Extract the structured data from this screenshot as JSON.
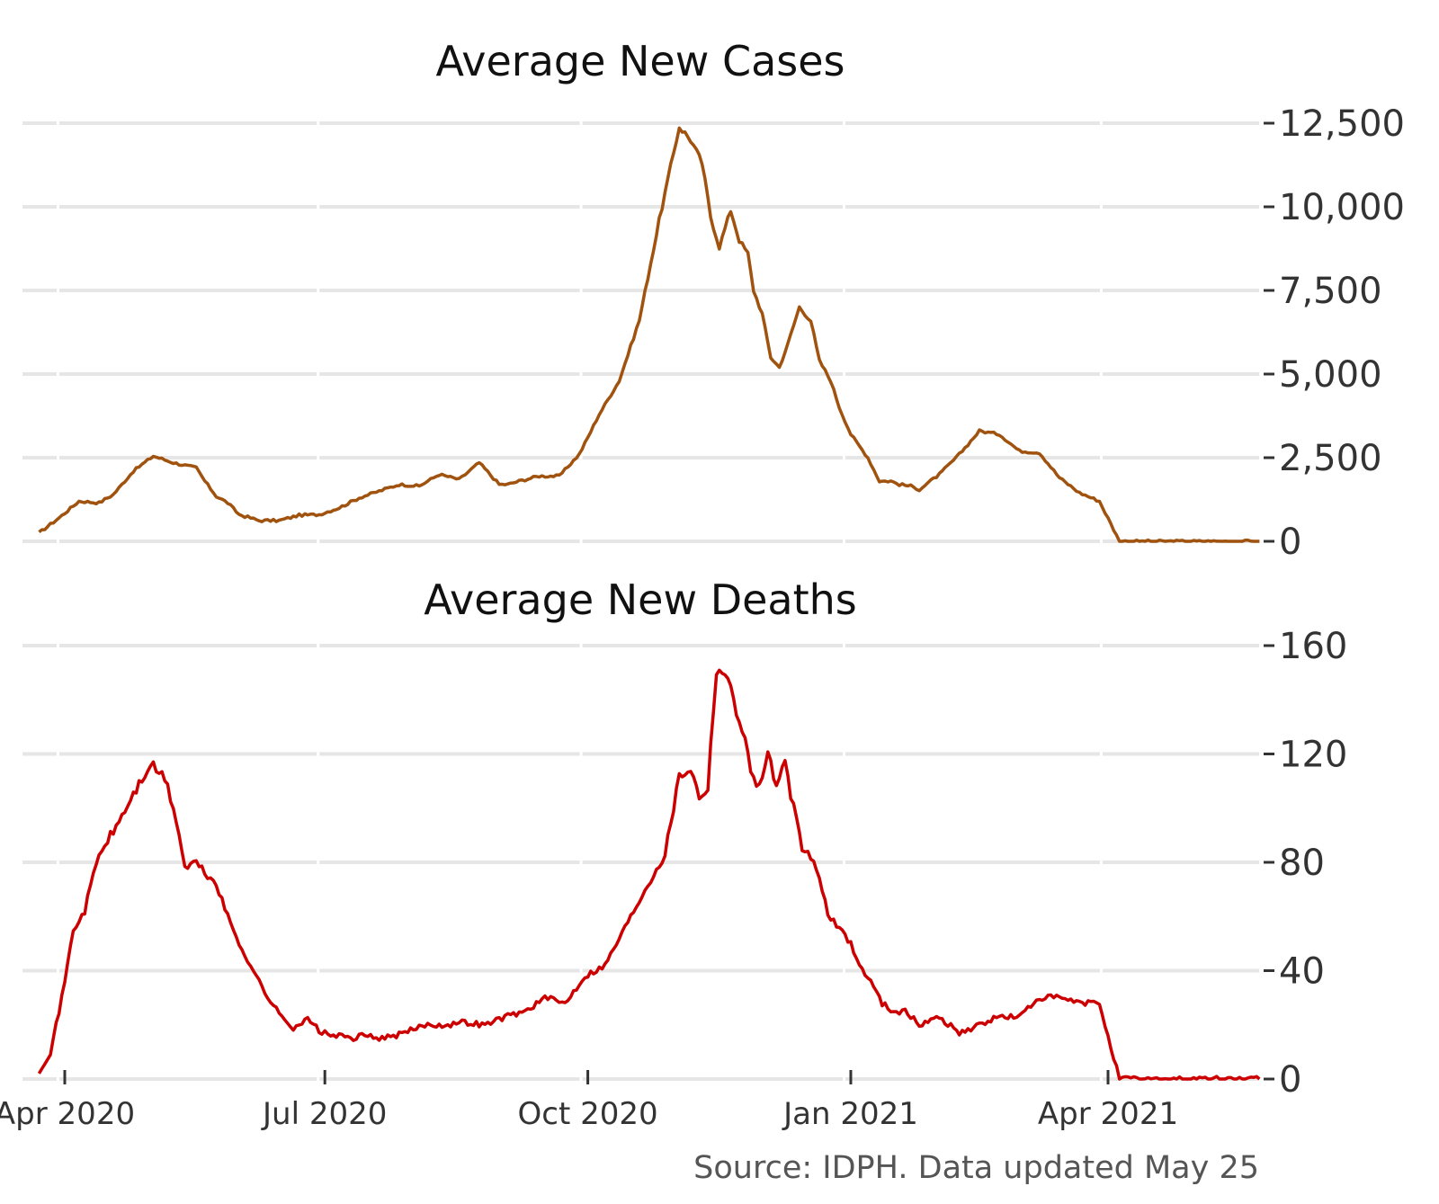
{
  "chart_data": [
    {
      "type": "line",
      "title": "Average New Cases",
      "xlabel": "",
      "ylabel": "",
      "ylim": [
        0,
        12500
      ],
      "yticks": [
        0,
        2500,
        5000,
        7500,
        10000,
        12500
      ],
      "ytick_labels": [
        "0",
        "2,500",
        "5,000",
        "7,500",
        "10,000",
        "12,500"
      ],
      "y_axis_position": "right",
      "grid": true,
      "legend": "none",
      "series": [
        {
          "color": "#A0520F",
          "x": [
            "2020-03-23",
            "2020-03-30",
            "2020-04-06",
            "2020-04-13",
            "2020-04-18",
            "2020-04-25",
            "2020-05-02",
            "2020-05-09",
            "2020-05-14",
            "2020-05-17",
            "2020-05-20",
            "2020-05-24",
            "2020-05-28",
            "2020-06-01",
            "2020-06-08",
            "2020-06-15",
            "2020-06-22",
            "2020-06-29",
            "2020-07-06",
            "2020-07-13",
            "2020-07-20",
            "2020-07-27",
            "2020-08-03",
            "2020-08-10",
            "2020-08-17",
            "2020-08-24",
            "2020-08-31",
            "2020-09-03",
            "2020-09-07",
            "2020-09-14",
            "2020-09-21",
            "2020-09-28",
            "2020-10-01",
            "2020-10-05",
            "2020-10-12",
            "2020-10-19",
            "2020-10-26",
            "2020-11-02",
            "2020-11-06",
            "2020-11-10",
            "2020-11-13",
            "2020-11-16",
            "2020-11-20",
            "2020-11-23",
            "2020-11-26",
            "2020-11-28",
            "2020-12-01",
            "2020-12-04",
            "2020-12-07",
            "2020-12-10",
            "2020-12-14",
            "2020-12-18",
            "2020-12-21",
            "2020-12-25",
            "2020-12-28",
            "2021-01-01",
            "2021-01-04",
            "2021-01-07",
            "2021-01-11",
            "2021-01-15",
            "2021-01-18",
            "2021-01-22",
            "2021-01-25",
            "2021-02-01",
            "2021-02-08",
            "2021-02-15",
            "2021-02-22",
            "2021-03-01",
            "2021-03-08",
            "2021-03-15",
            "2021-03-22",
            "2021-03-29",
            "2021-04-05",
            "2021-04-12",
            "2021-04-16",
            "2021-04-20",
            "2021-04-26",
            "2021-05-03",
            "2021-05-10",
            "2021-05-17",
            "2021-05-24"
          ],
          "y": [
            250,
            700,
            1200,
            1150,
            1400,
            2100,
            2550,
            2350,
            2250,
            2200,
            1800,
            1350,
            1150,
            800,
            620,
            620,
            780,
            800,
            1000,
            1300,
            1500,
            1700,
            1650,
            2000,
            1850,
            2350,
            1700,
            1700,
            1800,
            1950,
            1950,
            2600,
            3100,
            3800,
            4800,
            6600,
            9600,
            12400,
            12000,
            11300,
            9700,
            8800,
            9900,
            9000,
            8600,
            7500,
            6800,
            5500,
            5200,
            5900,
            7000,
            6600,
            5400,
            4800,
            4000,
            3200,
            2850,
            2500,
            1800,
            1800,
            1700,
            1650,
            1550,
            2000,
            2600,
            3300,
            3200,
            2700,
            2650,
            1900,
            1450,
            1200,
            0,
            0,
            0,
            0,
            0,
            0,
            0,
            0,
            0
          ]
        }
      ]
    },
    {
      "type": "line",
      "title": "Average New Deaths",
      "xlabel": "",
      "ylabel": "",
      "ylim": [
        0,
        160
      ],
      "yticks": [
        0,
        40,
        80,
        120,
        160
      ],
      "ytick_labels": [
        "0",
        "40",
        "80",
        "120",
        "160"
      ],
      "y_axis_position": "right",
      "grid": true,
      "legend": "none",
      "x_ticks": [
        "2020-04-01",
        "2020-07-01",
        "2020-10-01",
        "2021-01-01",
        "2021-04-01"
      ],
      "x_tick_labels": [
        "Apr 2020",
        "Jul 2020",
        "Oct 2020",
        "Jan 2021",
        "Apr 2021"
      ],
      "series": [
        {
          "color": "#CC0000",
          "x": [
            "2020-03-23",
            "2020-03-27",
            "2020-03-31",
            "2020-04-04",
            "2020-04-08",
            "2020-04-12",
            "2020-04-16",
            "2020-04-20",
            "2020-04-25",
            "2020-05-01",
            "2020-05-06",
            "2020-05-10",
            "2020-05-13",
            "2020-05-17",
            "2020-05-20",
            "2020-05-24",
            "2020-05-28",
            "2020-06-01",
            "2020-06-05",
            "2020-06-10",
            "2020-06-15",
            "2020-06-20",
            "2020-06-25",
            "2020-06-30",
            "2020-07-05",
            "2020-07-10",
            "2020-07-15",
            "2020-07-22",
            "2020-07-29",
            "2020-08-05",
            "2020-08-12",
            "2020-08-19",
            "2020-08-26",
            "2020-09-02",
            "2020-09-09",
            "2020-09-16",
            "2020-09-23",
            "2020-09-30",
            "2020-10-07",
            "2020-10-14",
            "2020-10-21",
            "2020-10-28",
            "2020-11-02",
            "2020-11-06",
            "2020-11-09",
            "2020-11-12",
            "2020-11-15",
            "2020-11-18",
            "2020-11-21",
            "2020-11-24",
            "2020-11-27",
            "2020-11-30",
            "2020-12-03",
            "2020-12-06",
            "2020-12-09",
            "2020-12-12",
            "2020-12-15",
            "2020-12-18",
            "2020-12-21",
            "2020-12-24",
            "2020-12-28",
            "2021-01-01",
            "2021-01-04",
            "2021-01-08",
            "2021-01-12",
            "2021-01-16",
            "2021-01-20",
            "2021-01-25",
            "2021-02-01",
            "2021-02-08",
            "2021-02-15",
            "2021-02-22",
            "2021-03-01",
            "2021-03-08",
            "2021-03-15",
            "2021-03-22",
            "2021-03-29",
            "2021-04-05",
            "2021-04-12",
            "2021-04-19",
            "2021-04-26",
            "2021-05-03",
            "2021-05-10",
            "2021-05-17",
            "2021-05-24"
          ],
          "y": [
            3,
            10,
            30,
            55,
            62,
            80,
            88,
            95,
            105,
            116,
            111,
            96,
            78,
            80,
            76,
            72,
            60,
            50,
            42,
            32,
            24,
            19,
            22,
            17,
            16,
            15,
            16,
            15,
            17,
            20,
            20,
            21,
            20,
            23,
            25,
            30,
            28,
            38,
            42,
            56,
            70,
            83,
            112,
            115,
            104,
            108,
            152,
            150,
            140,
            130,
            114,
            108,
            120,
            108,
            116,
            100,
            85,
            82,
            75,
            60,
            56,
            50,
            42,
            36,
            28,
            25,
            25,
            20,
            23,
            17,
            20,
            23,
            23,
            30,
            30,
            28,
            28,
            0,
            0,
            0,
            0,
            0,
            0,
            0,
            0
          ]
        }
      ]
    }
  ],
  "source_note": "Source: IDPH. Data updated May 25"
}
